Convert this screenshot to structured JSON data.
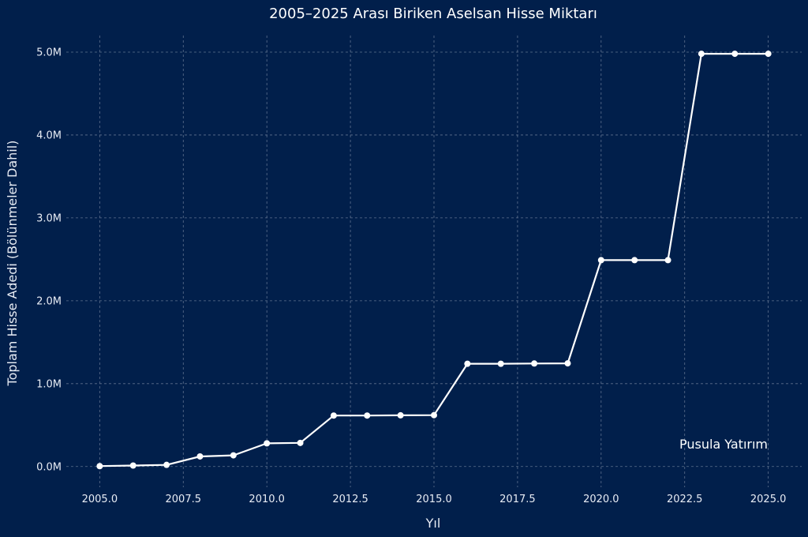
{
  "chart_data": {
    "type": "line",
    "title": "2005–2025 Arası Biriken Aselsan Hisse Miktarı",
    "xlabel": "Yıl",
    "ylabel": "Toplam Hisse Adedi (Bölünmeler Dahil)",
    "xlim": [
      2004,
      2026
    ],
    "ylim": [
      -250000,
      5200000
    ],
    "x_ticks": [
      2005.0,
      2007.5,
      2010.0,
      2012.5,
      2015.0,
      2017.5,
      2020.0,
      2022.5,
      2025.0
    ],
    "x_tick_labels": [
      "2005.0",
      "2007.5",
      "2010.0",
      "2012.5",
      "2015.0",
      "2017.5",
      "2020.0",
      "2022.5",
      "2025.0"
    ],
    "y_ticks": [
      0,
      1000000,
      2000000,
      3000000,
      4000000,
      5000000
    ],
    "y_tick_labels": [
      "0.0M",
      "1.0M",
      "2.0M",
      "3.0M",
      "4.0M",
      "5.0M"
    ],
    "grid": true,
    "series": [
      {
        "x": [
          2005,
          2006,
          2007,
          2008,
          2009,
          2010,
          2011,
          2012,
          2013,
          2014,
          2015,
          2016,
          2017,
          2018,
          2019,
          2020,
          2021,
          2022,
          2023,
          2024,
          2025
        ],
        "values": [
          5000,
          12000,
          20000,
          122000,
          135000,
          280000,
          285000,
          615000,
          615000,
          618000,
          620000,
          1240000,
          1240000,
          1243000,
          1245000,
          2490000,
          2490000,
          2490000,
          4980000,
          4980000,
          4980000
        ],
        "color": "#ffffff"
      }
    ],
    "annotation": "Pusula Yatırım"
  }
}
